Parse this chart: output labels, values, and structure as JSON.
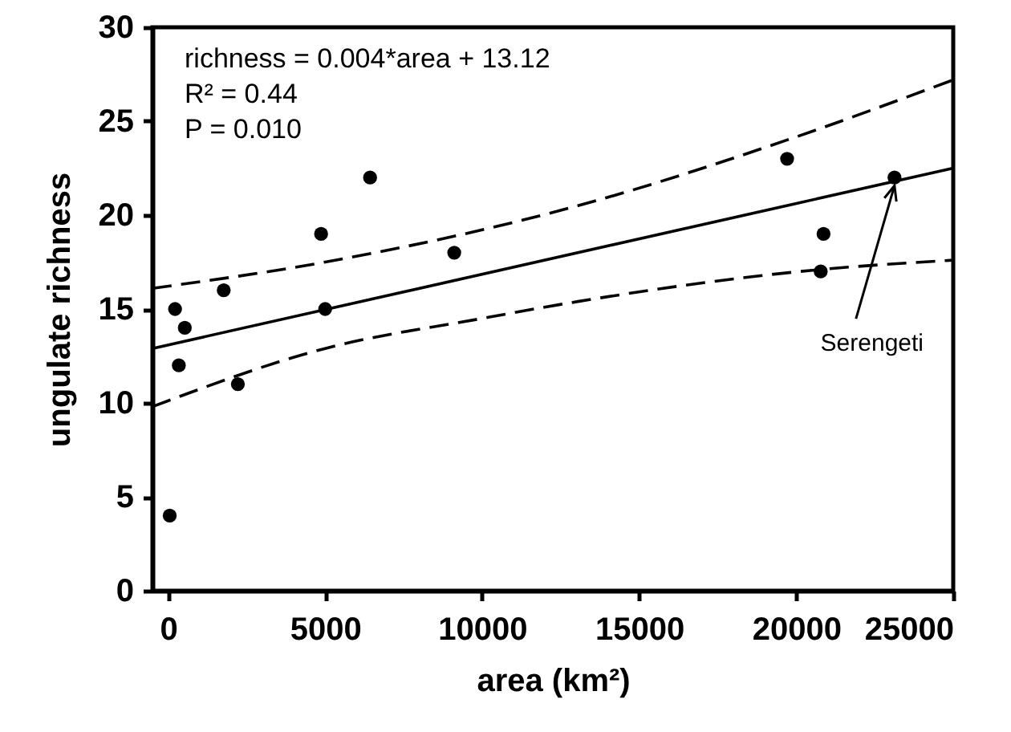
{
  "chart_data": {
    "type": "scatter",
    "xlabel": "area (km²)",
    "ylabel": "ungulate richness",
    "xlim": [
      -500,
      25000
    ],
    "xticks": [
      0,
      5000,
      10000,
      15000,
      20000,
      25000
    ],
    "ylim": [
      0,
      30
    ],
    "yticks": [
      0,
      5,
      10,
      15,
      20,
      25,
      30
    ],
    "grid": false,
    "marker": "circle",
    "annotations": [
      "richness = 0.004*area + 13.12",
      "R² = 0.44",
      "P = 0.010",
      {
        "text": "Serengeti",
        "x": 23130,
        "y": 22
      }
    ],
    "series": [
      {
        "color": "#000000",
        "x": [
          50,
          220,
          340,
          530,
          1770,
          2220,
          4870,
          5000,
          6430,
          9110,
          19710,
          20870,
          20780,
          23130
        ],
        "values": [
          4,
          15,
          12,
          14,
          16,
          11,
          19,
          15,
          22,
          18,
          23,
          19,
          17,
          22
        ]
      },
      {
        "type": "line",
        "color": "#000000",
        "line_style": "solid",
        "marker": "none",
        "x": [
          -500,
          25000
        ],
        "values": [
          12.9,
          22.5
        ]
      },
      {
        "type": "line",
        "color": "#000000",
        "line_style": "dashed",
        "marker": "none",
        "x": [
          -500,
          5000,
          13050,
          19710,
          25000
        ],
        "values": [
          16.1,
          17.5,
          20.5,
          24.0,
          27.2
        ]
      },
      {
        "type": "line",
        "color": "#000000",
        "line_style": "dashed",
        "marker": "none",
        "x": [
          -500,
          5000,
          10000,
          13050,
          20750,
          25000
        ],
        "values": [
          9.8,
          12.9,
          14.5,
          15.4,
          17.1,
          17.6
        ]
      }
    ]
  }
}
